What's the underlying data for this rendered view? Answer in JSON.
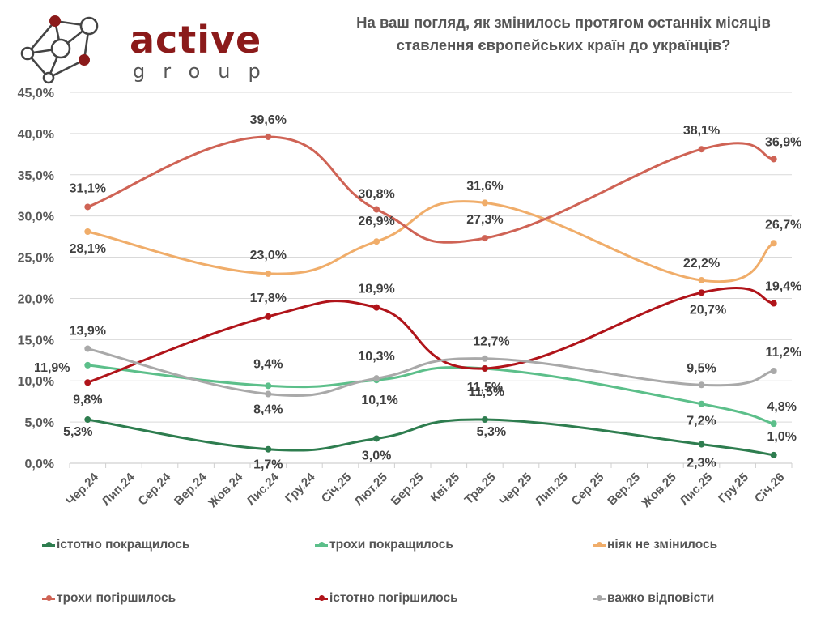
{
  "logo": {
    "word": "active",
    "sub": "group",
    "accent": "#8b1a1a"
  },
  "chart_data": {
    "type": "line",
    "title": "На ваш погляд, як змінилось протягом останніх місяців ставлення європейських країн до українців?",
    "title_lines": [
      "На ваш погляд, як змінилось протягом останніх місяців",
      "ставлення європейських країн до українців?"
    ],
    "xlabel": "",
    "ylabel": "",
    "categories": [
      "Чер.24",
      "Лип.24",
      "Сер.24",
      "Вер.24",
      "Жов.24",
      "Лис.24",
      "Гру.24",
      "Січ.25",
      "Лют.25",
      "Бер.25",
      "Кві.25",
      "Тра.25",
      "Чер.25",
      "Лип.25",
      "Сер.25",
      "Вер.25",
      "Жов.25",
      "Лис.25",
      "Гру.25",
      "Січ.26"
    ],
    "ylim": [
      0,
      45
    ],
    "yticks": [
      0,
      5,
      10,
      15,
      20,
      25,
      30,
      35,
      40,
      45
    ],
    "ytick_labels": [
      "0,0%",
      "5,0%",
      "10,0%",
      "15,0%",
      "20,0%",
      "25,0%",
      "30,0%",
      "35,0%",
      "40,0%",
      "45,0%"
    ],
    "grid": true,
    "legend_position": "bottom",
    "series": [
      {
        "name": "істотно покращилось",
        "color": "#2e7d4f",
        "points": [
          {
            "category": "Чер.24",
            "value": 5.3,
            "label": "5,3%"
          },
          {
            "category": "Лис.24",
            "value": 1.7,
            "label": "1,7%"
          },
          {
            "category": "Лют.25",
            "value": 3.0,
            "label": "3,0%"
          },
          {
            "category": "Тра.25",
            "value": 5.3,
            "label": "5,3%"
          },
          {
            "category": "Лис.25",
            "value": 2.3,
            "label": "2,3%"
          },
          {
            "category": "Січ.26",
            "value": 1.0,
            "label": "1,0%"
          }
        ]
      },
      {
        "name": "трохи покращилось",
        "color": "#5cbf8a",
        "points": [
          {
            "category": "Чер.24",
            "value": 11.9,
            "label": "11,9%"
          },
          {
            "category": "Лис.24",
            "value": 9.4,
            "label": "9,4%"
          },
          {
            "category": "Лют.25",
            "value": 10.1,
            "label": "10,1%"
          },
          {
            "category": "Тра.25",
            "value": 11.5,
            "label": "11,5%"
          },
          {
            "category": "Лис.25",
            "value": 7.2,
            "label": "7,2%"
          },
          {
            "category": "Січ.26",
            "value": 4.8,
            "label": "4,8%"
          }
        ]
      },
      {
        "name": "ніяк не змінилось",
        "color": "#f0ad6a",
        "points": [
          {
            "category": "Чер.24",
            "value": 28.1,
            "label": "28,1%"
          },
          {
            "category": "Лис.24",
            "value": 23.0,
            "label": "23,0%"
          },
          {
            "category": "Лют.25",
            "value": 26.9,
            "label": "26,9%"
          },
          {
            "category": "Тра.25",
            "value": 31.6,
            "label": "31,6%"
          },
          {
            "category": "Лис.25",
            "value": 22.2,
            "label": "22,2%"
          },
          {
            "category": "Січ.26",
            "value": 26.7,
            "label": "26,7%"
          }
        ]
      },
      {
        "name": "трохи погіршилось",
        "color": "#cf6355",
        "points": [
          {
            "category": "Чер.24",
            "value": 31.1,
            "label": "31,1%"
          },
          {
            "category": "Лис.24",
            "value": 39.6,
            "label": "39,6%"
          },
          {
            "category": "Лют.25",
            "value": 30.8,
            "label": "30,8%"
          },
          {
            "category": "Тра.25",
            "value": 27.3,
            "label": "27,3%"
          },
          {
            "category": "Лис.25",
            "value": 38.1,
            "label": "38,1%"
          },
          {
            "category": "Січ.26",
            "value": 36.9,
            "label": "36,9%"
          }
        ]
      },
      {
        "name": "істотно погіршилось",
        "color": "#b0141a",
        "points": [
          {
            "category": "Чер.24",
            "value": 9.8,
            "label": "9,8%"
          },
          {
            "category": "Лис.24",
            "value": 17.8,
            "label": "17,8%"
          },
          {
            "category": "Лют.25",
            "value": 18.9,
            "label": "18,9%"
          },
          {
            "category": "Тра.25",
            "value": 11.5,
            "label": "11,5%"
          },
          {
            "category": "Лис.25",
            "value": 20.7,
            "label": "20,7%"
          },
          {
            "category": "Січ.26",
            "value": 19.4,
            "label": "19,4%"
          }
        ]
      },
      {
        "name": "важко відповісти",
        "color": "#a9a9a9",
        "points": [
          {
            "category": "Чер.24",
            "value": 13.9,
            "label": "13,9%"
          },
          {
            "category": "Лис.24",
            "value": 8.4,
            "label": "8,4%"
          },
          {
            "category": "Лют.25",
            "value": 10.3,
            "label": "10,3%"
          },
          {
            "category": "Тра.25",
            "value": 12.7,
            "label": "12,7%"
          },
          {
            "category": "Лис.25",
            "value": 9.5,
            "label": "9,5%"
          },
          {
            "category": "Січ.26",
            "value": 11.2,
            "label": "11,2%"
          }
        ]
      }
    ]
  }
}
